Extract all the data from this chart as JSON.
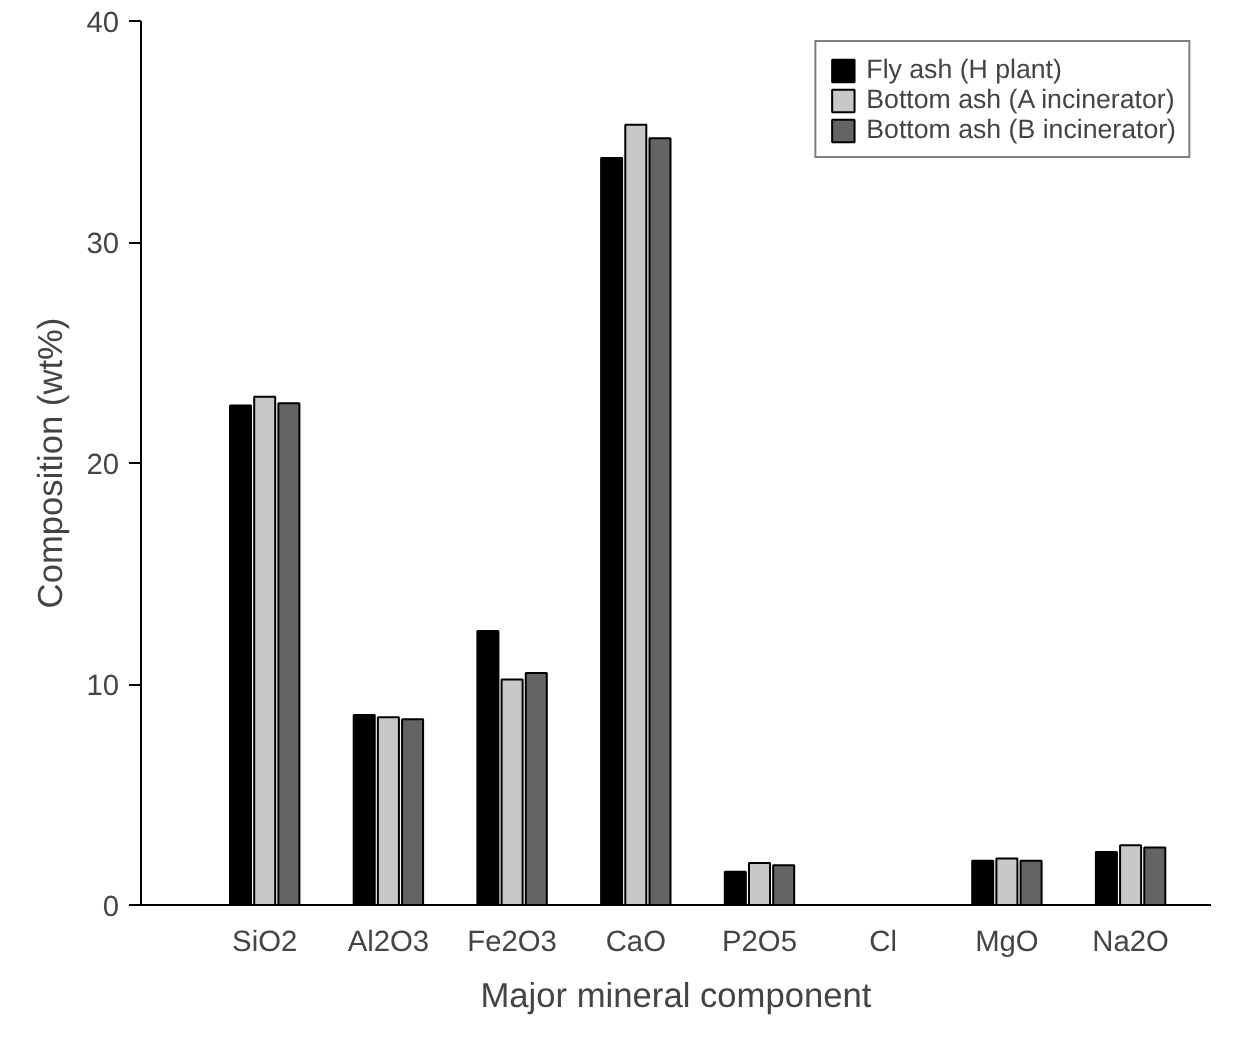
{
  "chart_data": {
    "type": "bar",
    "xlabel": "Major mineral component",
    "ylabel": "Composition (wt%)",
    "categories": [
      "SiO2",
      "Al2O3",
      "Fe2O3",
      "CaO",
      "P2O5",
      "Cl",
      "MgO",
      "Na2O"
    ],
    "series": [
      {
        "name": "Fly ash (H plant)",
        "color": "#000000",
        "values": [
          22.6,
          8.6,
          12.4,
          33.8,
          1.5,
          null,
          2.0,
          2.4
        ]
      },
      {
        "name": "Bottom ash (A incinerator)",
        "color": "#c8c8c8",
        "values": [
          23.0,
          8.5,
          10.2,
          35.3,
          1.9,
          null,
          2.1,
          2.7
        ]
      },
      {
        "name": "Bottom ash (B incinerator)",
        "color": "#646464",
        "values": [
          22.7,
          8.4,
          10.5,
          34.7,
          1.8,
          null,
          2.0,
          2.6
        ]
      }
    ],
    "ylim": [
      0,
      40
    ],
    "yticks": [
      0,
      10,
      20,
      30,
      40
    ],
    "grid": false,
    "legend": "top right"
  }
}
